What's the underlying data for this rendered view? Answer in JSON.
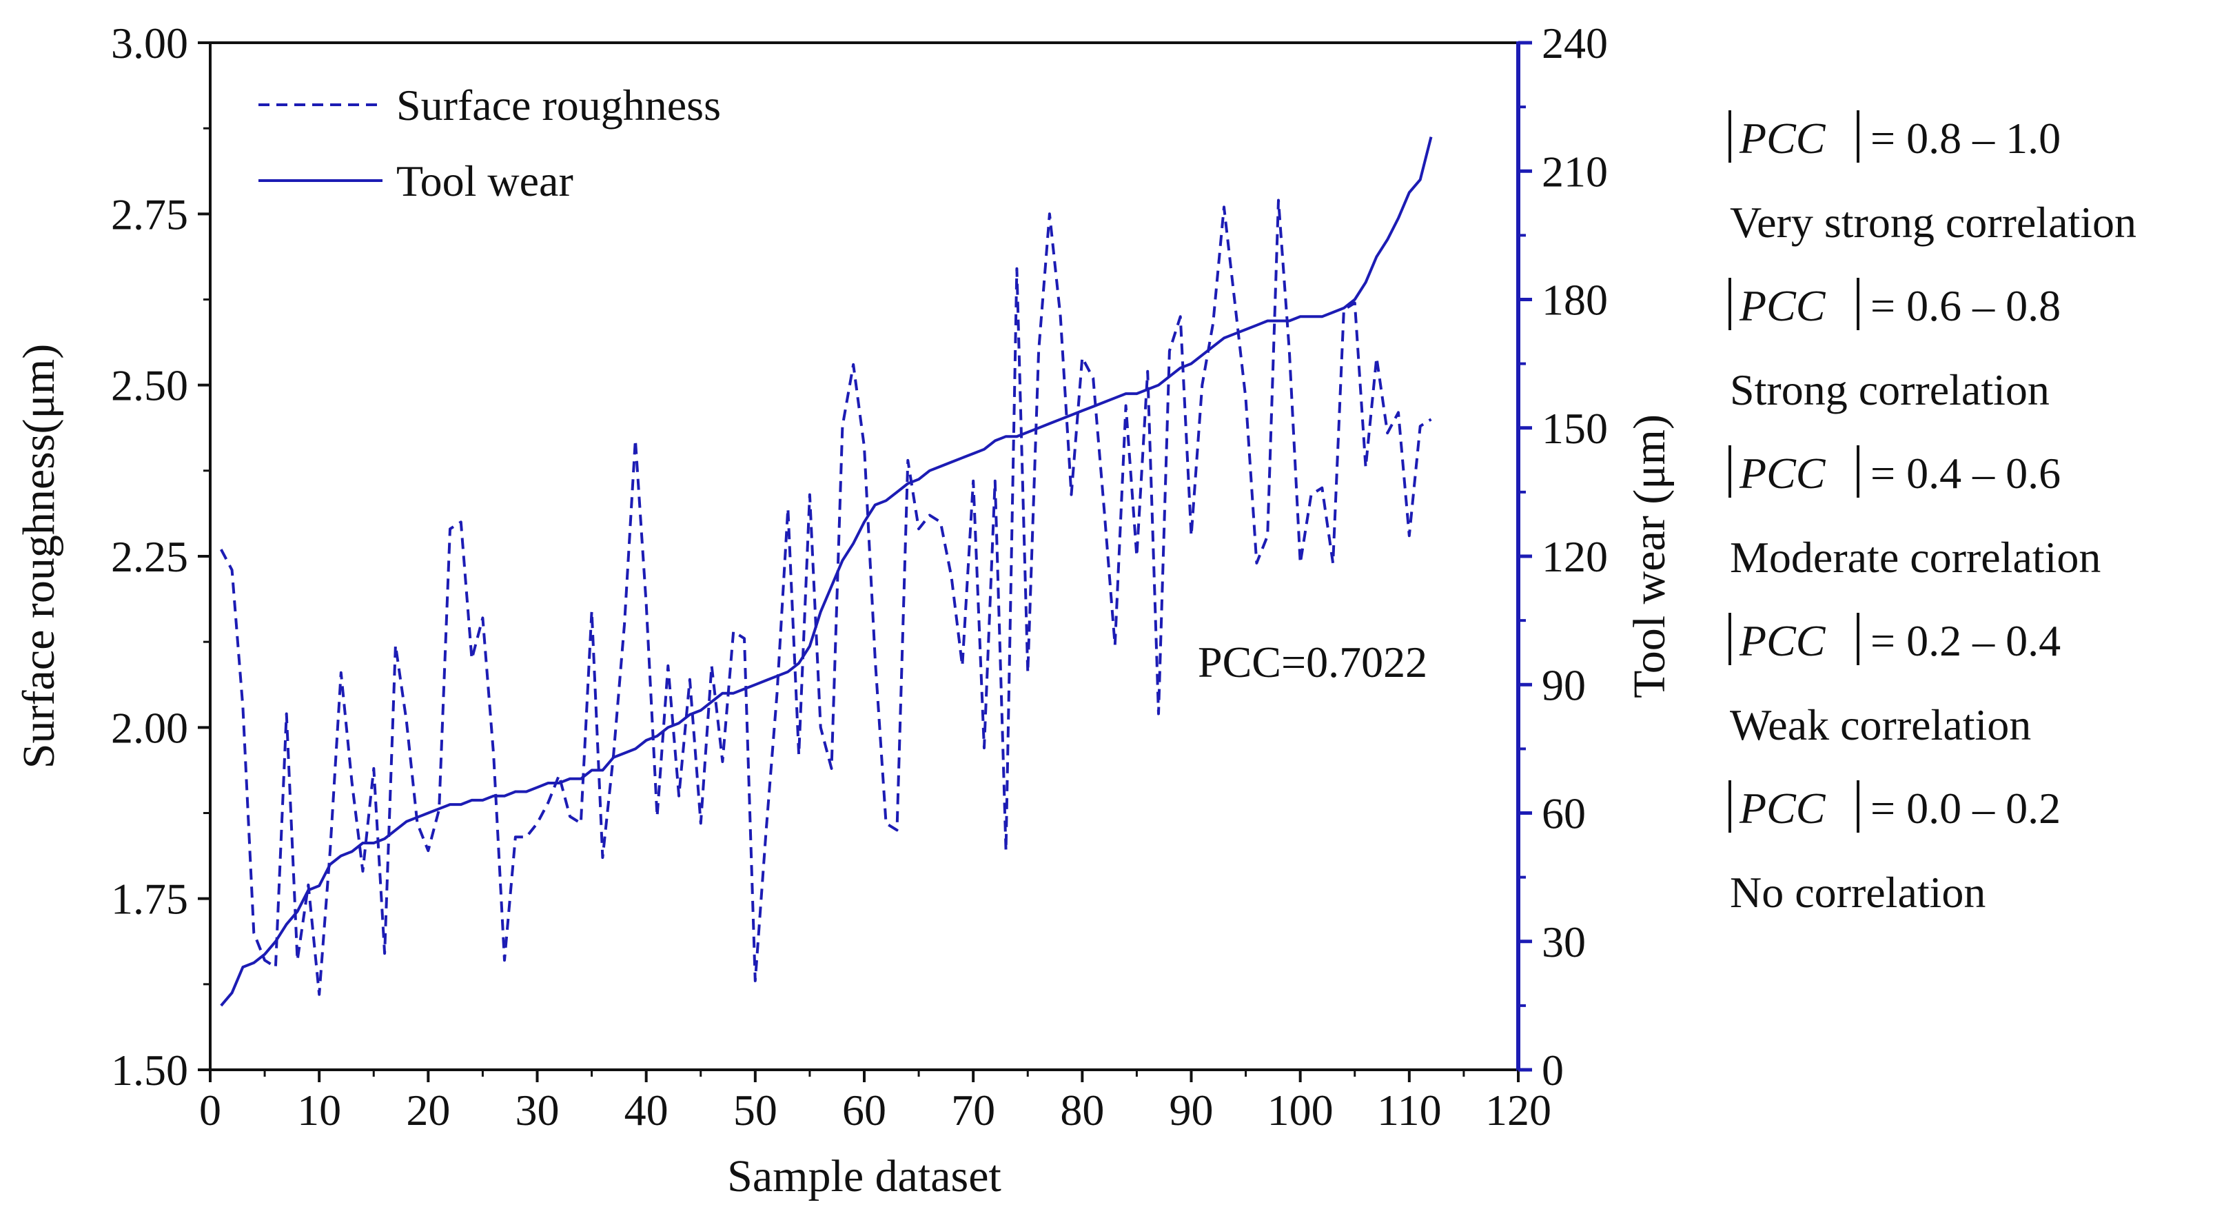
{
  "chart_data": {
    "type": "line",
    "xlabel": "Sample dataset",
    "ylabel_left": "Surface roughness(μm)",
    "ylabel_right": "Tool wear (μm)",
    "xlim": [
      0,
      120
    ],
    "ylim_left": [
      1.5,
      3.0
    ],
    "ylim_right": [
      0,
      240
    ],
    "x_ticks": [
      "0",
      "10",
      "20",
      "30",
      "40",
      "50",
      "60",
      "70",
      "80",
      "90",
      "100",
      "110",
      "120"
    ],
    "y_left_ticks": [
      "1.50",
      "1.75",
      "2.00",
      "2.25",
      "2.50",
      "2.75",
      "3.00"
    ],
    "y_right_ticks": [
      "0",
      "30",
      "60",
      "90",
      "120",
      "150",
      "180",
      "210",
      "240"
    ],
    "legend": [
      "Surface roughness",
      "Tool wear"
    ],
    "legend_position": "top-left",
    "annotation": "PCC=0.7022",
    "color": "#1c1cb4",
    "series": [
      {
        "name": "Surface roughness",
        "axis": "left",
        "style": "dashed",
        "x": [
          1,
          2,
          3,
          4,
          5,
          6,
          7,
          8,
          9,
          10,
          11,
          12,
          13,
          14,
          15,
          16,
          17,
          18,
          19,
          20,
          21,
          22,
          23,
          24,
          25,
          26,
          27,
          28,
          29,
          30,
          31,
          32,
          33,
          34,
          35,
          36,
          37,
          38,
          39,
          40,
          41,
          42,
          43,
          44,
          45,
          46,
          47,
          48,
          49,
          50,
          51,
          52,
          53,
          54,
          55,
          56,
          57,
          58,
          59,
          60,
          61,
          62,
          63,
          64,
          65,
          66,
          67,
          68,
          69,
          70,
          71,
          72,
          73,
          74,
          75,
          76,
          77,
          78,
          79,
          80,
          81,
          82,
          83,
          84,
          85,
          86,
          87,
          88,
          89,
          90,
          91,
          92,
          93,
          94,
          95,
          96,
          97,
          98,
          99,
          100,
          101,
          102,
          103,
          104,
          105,
          106,
          107,
          108,
          109,
          110,
          111,
          112
        ],
        "values": [
          2.26,
          2.23,
          2.03,
          1.7,
          1.66,
          1.65,
          2.02,
          1.66,
          1.77,
          1.61,
          1.82,
          2.08,
          1.92,
          1.79,
          1.94,
          1.67,
          2.12,
          2.01,
          1.86,
          1.82,
          1.88,
          2.29,
          2.3,
          2.1,
          2.16,
          1.96,
          1.66,
          1.84,
          1.84,
          1.86,
          1.89,
          1.93,
          1.87,
          1.86,
          2.17,
          1.81,
          1.96,
          2.15,
          2.42,
          2.18,
          1.87,
          2.09,
          1.9,
          2.07,
          1.86,
          2.09,
          1.95,
          2.14,
          2.13,
          1.63,
          1.85,
          2.05,
          2.32,
          1.96,
          2.34,
          2.0,
          1.94,
          2.44,
          2.53,
          2.41,
          2.1,
          1.86,
          1.85,
          2.39,
          2.29,
          2.31,
          2.3,
          2.22,
          2.09,
          2.36,
          1.97,
          2.36,
          1.82,
          2.67,
          2.08,
          2.55,
          2.75,
          2.6,
          2.34,
          2.54,
          2.51,
          2.32,
          2.12,
          2.47,
          2.25,
          2.52,
          2.02,
          2.55,
          2.6,
          2.28,
          2.5,
          2.59,
          2.76,
          2.62,
          2.48,
          2.24,
          2.28,
          2.77,
          2.55,
          2.24,
          2.34,
          2.35,
          2.24,
          2.61,
          2.62,
          2.38,
          2.54,
          2.43,
          2.46,
          2.28,
          2.44,
          2.45
        ]
      },
      {
        "name": "Tool wear",
        "axis": "right",
        "style": "solid",
        "x": [
          1,
          2,
          3,
          4,
          5,
          6,
          7,
          8,
          9,
          10,
          11,
          12,
          13,
          14,
          15,
          16,
          17,
          18,
          19,
          20,
          21,
          22,
          23,
          24,
          25,
          26,
          27,
          28,
          29,
          30,
          31,
          32,
          33,
          34,
          35,
          36,
          37,
          38,
          39,
          40,
          41,
          42,
          43,
          44,
          45,
          46,
          47,
          48,
          49,
          50,
          51,
          52,
          53,
          54,
          55,
          56,
          57,
          58,
          59,
          60,
          61,
          62,
          63,
          64,
          65,
          66,
          67,
          68,
          69,
          70,
          71,
          72,
          73,
          74,
          75,
          76,
          77,
          78,
          79,
          80,
          81,
          82,
          83,
          84,
          85,
          86,
          87,
          88,
          89,
          90,
          91,
          92,
          93,
          94,
          95,
          96,
          97,
          98,
          99,
          100,
          101,
          102,
          103,
          104,
          105,
          106,
          107,
          108,
          109,
          110,
          111,
          112
        ],
        "values": [
          15,
          18,
          24,
          25,
          27,
          30,
          34,
          37,
          42,
          43,
          48,
          50,
          51,
          53,
          53,
          54,
          56,
          58,
          59,
          60,
          61,
          62,
          62,
          63,
          63,
          64,
          64,
          65,
          65,
          66,
          67,
          67,
          68,
          68,
          70,
          70,
          73,
          74,
          75,
          77,
          78,
          80,
          81,
          83,
          84,
          86,
          88,
          88,
          89,
          90,
          91,
          92,
          93,
          95,
          99,
          107,
          113,
          119,
          123,
          128,
          132,
          133,
          135,
          137,
          138,
          140,
          141,
          142,
          143,
          144,
          145,
          147,
          148,
          148,
          149,
          150,
          151,
          152,
          153,
          154,
          155,
          156,
          157,
          158,
          158,
          159,
          160,
          162,
          164,
          165,
          167,
          169,
          171,
          172,
          173,
          174,
          175,
          175,
          175,
          176,
          176,
          176,
          177,
          178,
          180,
          184,
          190,
          194,
          199,
          205,
          208,
          218
        ]
      }
    ]
  },
  "side_panel": {
    "entries": [
      {
        "pcc_label": "PCC",
        "range": "= 0.8 – 1.0",
        "description": "Very strong correlation"
      },
      {
        "pcc_label": "PCC",
        "range": "= 0.6 – 0.8",
        "description": "Strong correlation"
      },
      {
        "pcc_label": "PCC",
        "range": "= 0.4 – 0.6",
        "description": "Moderate correlation"
      },
      {
        "pcc_label": "PCC",
        "range": "= 0.2 – 0.4",
        "description": "Weak correlation"
      },
      {
        "pcc_label": "PCC",
        "range": "= 0.0 – 0.2",
        "description": "No correlation"
      }
    ]
  }
}
